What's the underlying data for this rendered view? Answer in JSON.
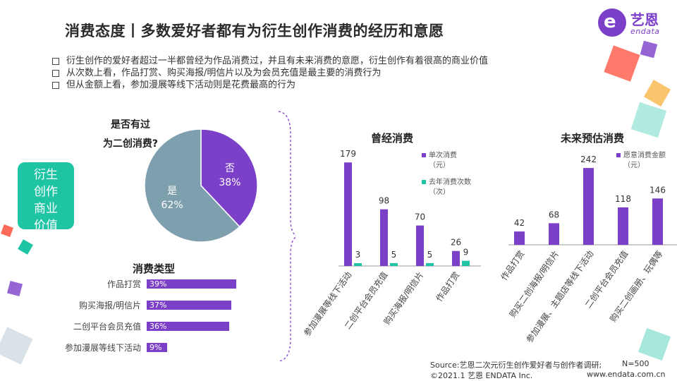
{
  "title": "消费态度丨多数爱好者都有为衍生创作消费的经历和意愿",
  "logo": {
    "cn": "艺恩",
    "en": "endata",
    "mark": "e"
  },
  "bullets": [
    "衍生创作的爱好者超过一半都曾经为作品消费过，并且有未来消费的意愿，衍生创作有着很高的商业价值",
    "从次数上看，作品打赏、购买海报/明信片以及为会员充值是最主要的消费行为",
    "但从金额上看，参加漫展等线下活动则是花费最高的行为"
  ],
  "badge": [
    "衍生",
    "创作",
    "商业",
    "价值"
  ],
  "colors": {
    "purple": "#7b3fc8",
    "teal": "#1fc4a4",
    "slate": "#7e9fae",
    "text": "#333333"
  },
  "chart_data": [
    {
      "type": "pie",
      "title": "是否有过为二创消费?",
      "title_lines": [
        "是否有过",
        "为二创消费?"
      ],
      "slices": [
        {
          "label": "否",
          "value": 38,
          "display": "38%",
          "color": "#7b3fc8"
        },
        {
          "label": "是",
          "value": 62,
          "display": "62%",
          "color": "#7e9fae"
        }
      ]
    },
    {
      "type": "bar",
      "orientation": "horizontal",
      "title": "消费类型",
      "categories": [
        "作品打赏",
        "购买海报/明信片",
        "二创平台会员充值",
        "参加漫展等线下活动"
      ],
      "values": [
        39,
        37,
        36,
        9
      ],
      "value_labels": [
        "39%",
        "37%",
        "36%",
        "9%"
      ],
      "unit": "%"
    },
    {
      "type": "bar",
      "title": "曾经消费",
      "categories": [
        "参加漫展等线下活动",
        "二创平台会员充值",
        "购买海报/明信片",
        "作品打赏"
      ],
      "series": [
        {
          "name": "单次消费（元）",
          "legend_lines": [
            "单次消费",
            "（元）"
          ],
          "values": [
            179,
            98,
            70,
            26
          ],
          "color": "#7b3fc8"
        },
        {
          "name": "去年消费次数（次）",
          "legend_lines": [
            "去年消费次数",
            "（次）"
          ],
          "values": [
            3,
            5,
            5,
            9
          ],
          "color": "#1fc4a4"
        }
      ],
      "legend_position": "right"
    },
    {
      "type": "bar",
      "title": "未来预估消费",
      "categories": [
        "作品打赏",
        "购买二创海报/明信片",
        "参加漫展、主题店等线下活动",
        "二创平台会员充值",
        "购买二创画册、玩偶等"
      ],
      "series": [
        {
          "name": "愿意消费金额（元）",
          "legend_lines": [
            "愿意消费金额",
            "（元）"
          ],
          "values": [
            42,
            68,
            242,
            118,
            146
          ],
          "color": "#7b3fc8"
        }
      ],
      "legend_position": "right"
    }
  ],
  "footer": {
    "source": "Source:艺恩二次元衍生创作爱好者与创作者调研;",
    "sample": "N=500",
    "copyright": "©2021.1 艺恩 ENDATA Inc.",
    "website": "www.endata.com.cn"
  }
}
